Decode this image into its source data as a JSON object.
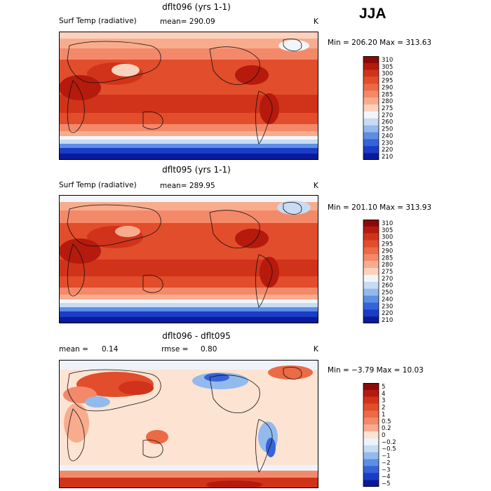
{
  "season": "JJA",
  "panels": [
    {
      "title": "dflt096 (yrs 1-1)",
      "field": "Surf Temp (radiative)",
      "mean_text": "mean= 290.09",
      "units": "K",
      "minmax": "Min = 206.20 Max = 313.63",
      "mean": 290.09,
      "min": 206.2,
      "max": 313.63
    },
    {
      "title": "dflt095 (yrs 1-1)",
      "field": "Surf Temp (radiative)",
      "mean_text": "mean= 289.95",
      "units": "K",
      "minmax": "Min = 201.10 Max = 313.93",
      "mean": 289.95,
      "min": 201.1,
      "max": 313.93
    },
    {
      "title": "dflt096 - dflt095",
      "mean_label": "mean =",
      "mean_value": "0.14",
      "rmse_label": "rmse =",
      "rmse_value": "0.80",
      "units": "K",
      "minmax": "Min = −3.79 Max = 10.03",
      "mean": 0.14,
      "rmse": 0.8,
      "min": -3.79,
      "max": 10.03
    }
  ],
  "chart_data": [
    {
      "type": "heatmap",
      "title": "dflt096 (yrs 1-1)",
      "variable": "Surf Temp (radiative)",
      "units": "K",
      "colorbar_levels": [
        "310",
        "305",
        "300",
        "295",
        "290",
        "285",
        "280",
        "275",
        "270",
        "260",
        "250",
        "240",
        "230",
        "220",
        "210"
      ],
      "colorbar_colors": [
        "#8a0a0a",
        "#b51a0d",
        "#d1331a",
        "#e24d2b",
        "#ec6a45",
        "#f4896a",
        "#f8ac8e",
        "#fbd2bd",
        "#f2f6fb",
        "#c7dbf3",
        "#93baed",
        "#5d8ee5",
        "#3563d8",
        "#1a3cc6",
        "#0a1a9a"
      ],
      "mean": 290.09,
      "min": 206.2,
      "max": 313.63
    },
    {
      "type": "heatmap",
      "title": "dflt095 (yrs 1-1)",
      "variable": "Surf Temp (radiative)",
      "units": "K",
      "colorbar_levels": [
        "310",
        "305",
        "300",
        "295",
        "290",
        "285",
        "280",
        "275",
        "270",
        "260",
        "250",
        "240",
        "230",
        "220",
        "210"
      ],
      "colorbar_colors": [
        "#8a0a0a",
        "#b51a0d",
        "#d1331a",
        "#e24d2b",
        "#ec6a45",
        "#f4896a",
        "#f8ac8e",
        "#fbd2bd",
        "#f2f6fb",
        "#c7dbf3",
        "#93baed",
        "#5d8ee5",
        "#3563d8",
        "#1a3cc6",
        "#0a1a9a"
      ],
      "mean": 289.95,
      "min": 201.1,
      "max": 313.93
    },
    {
      "type": "heatmap",
      "title": "dflt096 - dflt095",
      "units": "K",
      "colorbar_levels": [
        "5",
        "4",
        "3",
        "2",
        "1",
        "0.5",
        "0.2",
        "0",
        "−0.2",
        "−0.5",
        "−1",
        "−2",
        "−3",
        "−4",
        "−5"
      ],
      "colorbar_colors": [
        "#8a0a0a",
        "#b51a0d",
        "#d1331a",
        "#e24d2b",
        "#ec6a45",
        "#f4896a",
        "#f8ac8e",
        "#fde3d2",
        "#eef3fb",
        "#c7dbf3",
        "#93baed",
        "#5d8ee5",
        "#3563d8",
        "#1a3cc6",
        "#0a1a9a"
      ],
      "mean": 0.14,
      "rmse": 0.8,
      "min": -3.79,
      "max": 10.03
    }
  ]
}
